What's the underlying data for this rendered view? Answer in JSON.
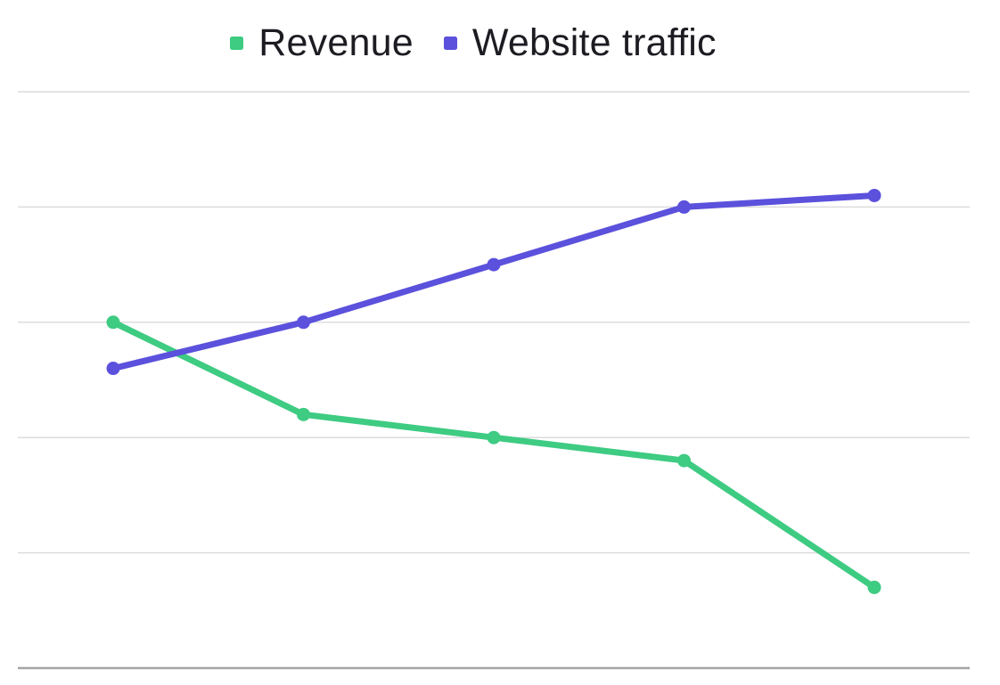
{
  "chart_data": {
    "type": "line",
    "title": "",
    "xlabel": "",
    "ylabel": "",
    "x": [
      1,
      2,
      3,
      4,
      5
    ],
    "categories": [
      "",
      "",
      "",
      "",
      ""
    ],
    "series": [
      {
        "name": "Revenue",
        "values": [
          3.0,
          2.2,
          2.0,
          1.8,
          0.7
        ],
        "color": "#3ecb82"
      },
      {
        "name": "Website traffic",
        "values": [
          2.6,
          3.0,
          3.5,
          4.0,
          4.1
        ],
        "color": "#5b51dc"
      }
    ],
    "ylim": [
      0,
      5
    ],
    "y_gridline_step": 1,
    "grid": "horizontal-only",
    "axis_tick_labels": "none",
    "legend_position": "top-center",
    "marker": "circle",
    "colors": {
      "grid_line": "#dcdcdc",
      "axis_line": "#a5a5a5",
      "background": "#ffffff",
      "legend_text": "#1c1c22"
    }
  },
  "legend": {
    "items": [
      {
        "label": "Revenue",
        "color": "#3ecb82"
      },
      {
        "label": "Website traffic",
        "color": "#5b51dc"
      }
    ]
  }
}
